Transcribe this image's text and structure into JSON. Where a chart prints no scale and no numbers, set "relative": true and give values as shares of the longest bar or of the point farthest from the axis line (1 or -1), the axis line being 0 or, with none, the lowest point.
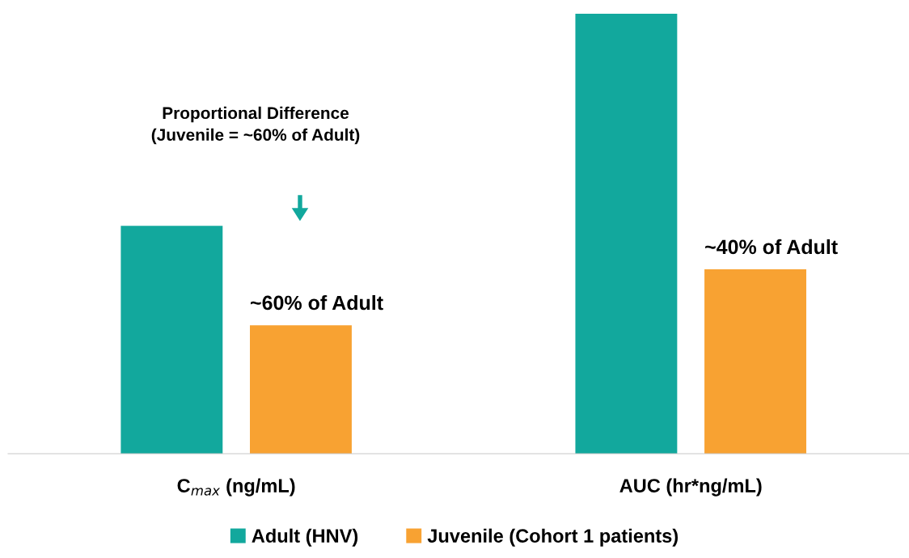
{
  "chart_data": {
    "type": "bar",
    "relative": true,
    "categories": [
      "C$_{max}$ (ng/mL)",
      "AUC (hr*ng/mL)"
    ],
    "series": [
      {
        "name": "Adult (HNV)",
        "color": "#12a89d",
        "values": [
          0.518,
          1
        ]
      },
      {
        "name": "Juvenile (Cohort 1 patients)",
        "color": "#f8a232",
        "values": [
          0.292,
          0.419
        ]
      }
    ],
    "annotations": [
      "Proportional Difference\n(Juvenile = ~60% of Adult)",
      "~60% of Adult",
      "~40% of Adult"
    ],
    "legend": "bottom",
    "grid": false
  }
}
